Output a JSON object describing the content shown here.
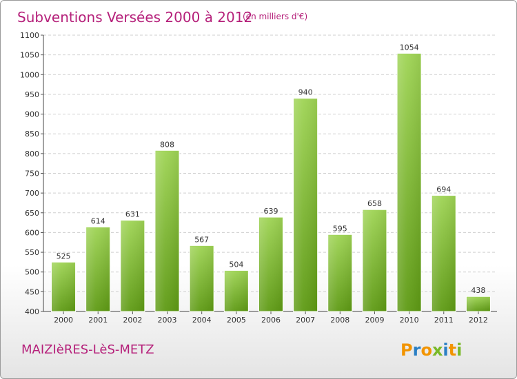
{
  "header": {
    "title": "Subventions Versées 2000 à 2012",
    "unit_note": "(en milliers d'€)"
  },
  "footer": {
    "place": "MAIZIèRES-LèS-METZ",
    "logo_text": "Proxiti"
  },
  "colors": {
    "title": "#b5207a",
    "bar_top": "#9fd455",
    "bar_bottom": "#5e9a14",
    "logo_letters": [
      "#f29400",
      "#2a7fc4",
      "#f29400",
      "#79b928",
      "#2a7fc4",
      "#f29400",
      "#79b928"
    ]
  },
  "chart_data": {
    "type": "bar",
    "title": "Subventions Versées 2000 à 2012",
    "subtitle": "(en milliers d'€)",
    "xlabel": "",
    "ylabel": "",
    "categories": [
      "2000",
      "2001",
      "2002",
      "2003",
      "2004",
      "2005",
      "2006",
      "2007",
      "2008",
      "2009",
      "2010",
      "2011",
      "2012"
    ],
    "values": [
      525,
      614,
      631,
      808,
      567,
      504,
      639,
      940,
      595,
      658,
      1054,
      694,
      438
    ],
    "data_labels": [
      "525",
      "614",
      "631",
      "808",
      "567",
      "504",
      "639",
      "940",
      "595",
      "658",
      "1054",
      "694",
      "438"
    ],
    "ylim": [
      400,
      1100
    ],
    "yticks": [
      400,
      450,
      500,
      550,
      600,
      650,
      700,
      750,
      800,
      850,
      900,
      950,
      1000,
      1050,
      1100
    ],
    "ytick_labels": [
      "400",
      "450",
      "500",
      "550",
      "600",
      "650",
      "700",
      "750",
      "800",
      "850",
      "900",
      "950",
      "1000",
      "1050",
      "1100"
    ],
    "grid": true,
    "legend": "none"
  }
}
